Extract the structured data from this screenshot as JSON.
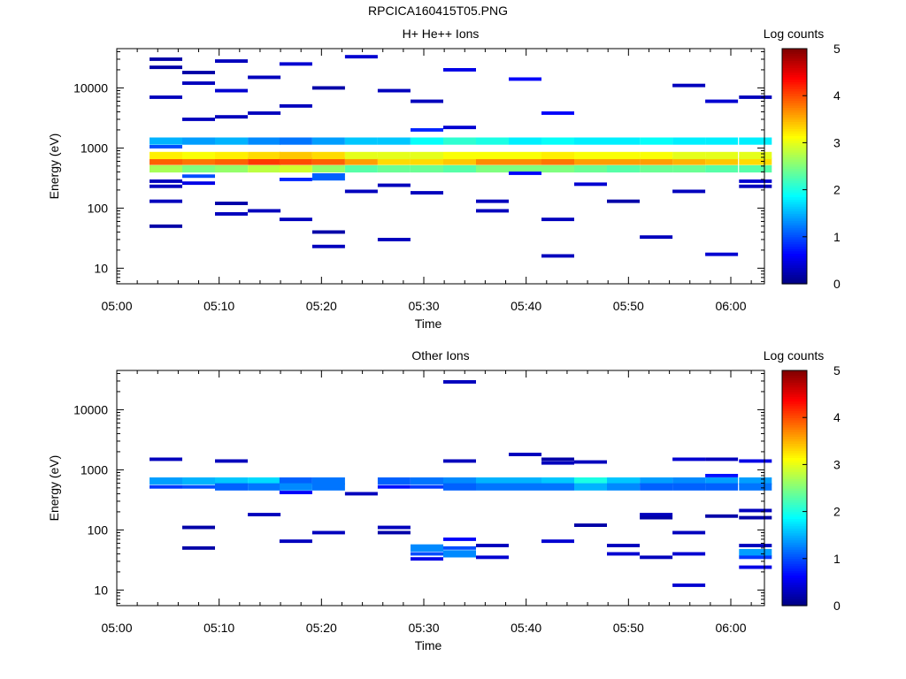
{
  "figure": {
    "filename": "RPCICA160415T05.PNG"
  },
  "chart_data": [
    {
      "type": "heatmap",
      "title": "H+ He++ Ions",
      "xlabel": "Time",
      "ylabel": "Energy (eV)",
      "x_ticks": [
        "05:00",
        "05:10",
        "05:20",
        "05:30",
        "05:40",
        "05:50",
        "06:00"
      ],
      "x_range_minutes": [
        0,
        63
      ],
      "y_ticks": [
        10,
        100,
        1000,
        10000
      ],
      "y_tick_labels": [
        "10",
        "100",
        "1000",
        "10000"
      ],
      "y_scale": "log",
      "y_range": [
        5.5,
        45000
      ],
      "colorbar": {
        "label": "Log counts",
        "min": 0,
        "max": 5,
        "ticks": [
          "0",
          "1",
          "2",
          "3",
          "4",
          "5"
        ],
        "colormap": "jet"
      },
      "time_bins_minutes": [
        3.2,
        6.4,
        9.6,
        12.8,
        15.9,
        19.1,
        22.3,
        25.5,
        28.7,
        31.9,
        35.1,
        38.3,
        41.5,
        44.7,
        47.9,
        51.1,
        54.3,
        57.5,
        60.8
      ],
      "cells": [
        {
          "t": 0,
          "e": 600,
          "v": 3.9
        },
        {
          "t": 0,
          "e": 450,
          "v": 2.7
        },
        {
          "t": 0,
          "e": 750,
          "v": 3.2
        },
        {
          "t": 0,
          "e": 1300,
          "v": 1.5
        },
        {
          "t": 0,
          "e": 1050,
          "v": 1.0
        },
        {
          "t": 0,
          "e": 50,
          "v": 0.2
        },
        {
          "t": 0,
          "e": 130,
          "v": 0.3
        },
        {
          "t": 0,
          "e": 230,
          "v": 0.3
        },
        {
          "t": 0,
          "e": 280,
          "v": 0.3
        },
        {
          "t": 0,
          "e": 7000,
          "v": 0.3
        },
        {
          "t": 0,
          "e": 22000,
          "v": 0.2
        },
        {
          "t": 0,
          "e": 30000,
          "v": 0.2
        },
        {
          "t": 1,
          "e": 600,
          "v": 3.8
        },
        {
          "t": 1,
          "e": 450,
          "v": 2.5
        },
        {
          "t": 1,
          "e": 750,
          "v": 3.1
        },
        {
          "t": 1,
          "e": 1300,
          "v": 1.4
        },
        {
          "t": 1,
          "e": 340,
          "v": 1.0
        },
        {
          "t": 1,
          "e": 260,
          "v": 0.5
        },
        {
          "t": 1,
          "e": 3000,
          "v": 0.3
        },
        {
          "t": 1,
          "e": 12000,
          "v": 0.3
        },
        {
          "t": 1,
          "e": 18000,
          "v": 0.2
        },
        {
          "t": 2,
          "e": 600,
          "v": 3.9
        },
        {
          "t": 2,
          "e": 450,
          "v": 2.6
        },
        {
          "t": 2,
          "e": 750,
          "v": 3.2
        },
        {
          "t": 2,
          "e": 1300,
          "v": 1.5
        },
        {
          "t": 2,
          "e": 80,
          "v": 0.3
        },
        {
          "t": 2,
          "e": 120,
          "v": 0.2
        },
        {
          "t": 2,
          "e": 9000,
          "v": 0.4
        },
        {
          "t": 2,
          "e": 3300,
          "v": 0.3
        },
        {
          "t": 2,
          "e": 28000,
          "v": 0.3
        },
        {
          "t": 3,
          "e": 600,
          "v": 4.1
        },
        {
          "t": 3,
          "e": 450,
          "v": 2.8
        },
        {
          "t": 3,
          "e": 750,
          "v": 3.3
        },
        {
          "t": 3,
          "e": 1300,
          "v": 1.3
        },
        {
          "t": 3,
          "e": 90,
          "v": 0.3
        },
        {
          "t": 3,
          "e": 3800,
          "v": 0.3
        },
        {
          "t": 3,
          "e": 15000,
          "v": 0.3
        },
        {
          "t": 4,
          "e": 600,
          "v": 4.0
        },
        {
          "t": 4,
          "e": 450,
          "v": 2.9
        },
        {
          "t": 4,
          "e": 750,
          "v": 3.4
        },
        {
          "t": 4,
          "e": 1300,
          "v": 1.2
        },
        {
          "t": 4,
          "e": 300,
          "v": 0.8
        },
        {
          "t": 4,
          "e": 65,
          "v": 0.3
        },
        {
          "t": 4,
          "e": 25000,
          "v": 0.4
        },
        {
          "t": 4,
          "e": 5000,
          "v": 0.3
        },
        {
          "t": 5,
          "e": 600,
          "v": 3.9
        },
        {
          "t": 5,
          "e": 450,
          "v": 2.6
        },
        {
          "t": 5,
          "e": 750,
          "v": 3.3
        },
        {
          "t": 5,
          "e": 1300,
          "v": 1.4
        },
        {
          "t": 5,
          "e": 330,
          "v": 1.1
        },
        {
          "t": 5,
          "e": 40,
          "v": 0.2
        },
        {
          "t": 5,
          "e": 23,
          "v": 0.3
        },
        {
          "t": 5,
          "e": 10000,
          "v": 0.2
        },
        {
          "t": 6,
          "e": 600,
          "v": 3.6
        },
        {
          "t": 6,
          "e": 450,
          "v": 2.3
        },
        {
          "t": 6,
          "e": 750,
          "v": 3.0
        },
        {
          "t": 6,
          "e": 1300,
          "v": 1.6
        },
        {
          "t": 6,
          "e": 190,
          "v": 0.3
        },
        {
          "t": 6,
          "e": 33000,
          "v": 0.4
        },
        {
          "t": 7,
          "e": 600,
          "v": 3.3
        },
        {
          "t": 7,
          "e": 450,
          "v": 2.4
        },
        {
          "t": 7,
          "e": 750,
          "v": 3.0
        },
        {
          "t": 7,
          "e": 1300,
          "v": 1.6
        },
        {
          "t": 7,
          "e": 30,
          "v": 0.3
        },
        {
          "t": 7,
          "e": 240,
          "v": 0.3
        },
        {
          "t": 7,
          "e": 9000,
          "v": 0.3
        },
        {
          "t": 8,
          "e": 600,
          "v": 3.3
        },
        {
          "t": 8,
          "e": 450,
          "v": 2.4
        },
        {
          "t": 8,
          "e": 750,
          "v": 3.0
        },
        {
          "t": 8,
          "e": 1300,
          "v": 1.9
        },
        {
          "t": 8,
          "e": 2000,
          "v": 0.8
        },
        {
          "t": 8,
          "e": 180,
          "v": 0.3
        },
        {
          "t": 8,
          "e": 6000,
          "v": 0.3
        },
        {
          "t": 9,
          "e": 600,
          "v": 3.4
        },
        {
          "t": 9,
          "e": 450,
          "v": 2.3
        },
        {
          "t": 9,
          "e": 750,
          "v": 3.1
        },
        {
          "t": 9,
          "e": 1300,
          "v": 2.1
        },
        {
          "t": 9,
          "e": 20000,
          "v": 0.5
        },
        {
          "t": 9,
          "e": 2200,
          "v": 0.4
        },
        {
          "t": 10,
          "e": 600,
          "v": 3.7
        },
        {
          "t": 10,
          "e": 450,
          "v": 2.5
        },
        {
          "t": 10,
          "e": 750,
          "v": 3.1
        },
        {
          "t": 10,
          "e": 1300,
          "v": 2.0
        },
        {
          "t": 10,
          "e": 90,
          "v": 0.3
        },
        {
          "t": 10,
          "e": 130,
          "v": 0.3
        },
        {
          "t": 11,
          "e": 600,
          "v": 3.7
        },
        {
          "t": 11,
          "e": 450,
          "v": 2.5
        },
        {
          "t": 11,
          "e": 750,
          "v": 3.1
        },
        {
          "t": 11,
          "e": 1300,
          "v": 1.8
        },
        {
          "t": 11,
          "e": 14000,
          "v": 0.6
        },
        {
          "t": 11,
          "e": 380,
          "v": 0.6
        },
        {
          "t": 12,
          "e": 600,
          "v": 3.8
        },
        {
          "t": 12,
          "e": 450,
          "v": 2.5
        },
        {
          "t": 12,
          "e": 750,
          "v": 3.2
        },
        {
          "t": 12,
          "e": 1300,
          "v": 1.9
        },
        {
          "t": 12,
          "e": 3800,
          "v": 0.6
        },
        {
          "t": 12,
          "e": 16,
          "v": 0.3
        },
        {
          "t": 12,
          "e": 65,
          "v": 0.3
        },
        {
          "t": 13,
          "e": 600,
          "v": 3.6
        },
        {
          "t": 13,
          "e": 450,
          "v": 2.4
        },
        {
          "t": 13,
          "e": 750,
          "v": 3.1
        },
        {
          "t": 13,
          "e": 1300,
          "v": 1.8
        },
        {
          "t": 13,
          "e": 250,
          "v": 0.4
        },
        {
          "t": 14,
          "e": 600,
          "v": 3.6
        },
        {
          "t": 14,
          "e": 450,
          "v": 2.3
        },
        {
          "t": 14,
          "e": 750,
          "v": 3.1
        },
        {
          "t": 14,
          "e": 1300,
          "v": 1.8
        },
        {
          "t": 14,
          "e": 130,
          "v": 0.2
        },
        {
          "t": 15,
          "e": 600,
          "v": 3.6
        },
        {
          "t": 15,
          "e": 450,
          "v": 2.4
        },
        {
          "t": 15,
          "e": 750,
          "v": 3.1
        },
        {
          "t": 15,
          "e": 1300,
          "v": 1.9
        },
        {
          "t": 15,
          "e": 33,
          "v": 0.3
        },
        {
          "t": 16,
          "e": 600,
          "v": 3.5
        },
        {
          "t": 16,
          "e": 450,
          "v": 2.4
        },
        {
          "t": 16,
          "e": 750,
          "v": 3.0
        },
        {
          "t": 16,
          "e": 1300,
          "v": 1.8
        },
        {
          "t": 16,
          "e": 190,
          "v": 0.3
        },
        {
          "t": 16,
          "e": 11000,
          "v": 0.3
        },
        {
          "t": 17,
          "e": 600,
          "v": 3.4
        },
        {
          "t": 17,
          "e": 450,
          "v": 2.3
        },
        {
          "t": 17,
          "e": 750,
          "v": 3.0
        },
        {
          "t": 17,
          "e": 1300,
          "v": 1.8
        },
        {
          "t": 17,
          "e": 17,
          "v": 0.4
        },
        {
          "t": 17,
          "e": 6000,
          "v": 0.4
        },
        {
          "t": 18,
          "e": 600,
          "v": 3.3
        },
        {
          "t": 18,
          "e": 450,
          "v": 2.3
        },
        {
          "t": 18,
          "e": 750,
          "v": 3.0
        },
        {
          "t": 18,
          "e": 1300,
          "v": 1.8
        },
        {
          "t": 18,
          "e": 280,
          "v": 0.4
        },
        {
          "t": 18,
          "e": 230,
          "v": 0.3
        },
        {
          "t": 18,
          "e": 7000,
          "v": 0.3
        }
      ]
    },
    {
      "type": "heatmap",
      "title": "Other Ions",
      "xlabel": "Time",
      "ylabel": "Energy (eV)",
      "x_ticks": [
        "05:00",
        "05:10",
        "05:20",
        "05:30",
        "05:40",
        "05:50",
        "06:00"
      ],
      "x_range_minutes": [
        0,
        63
      ],
      "y_ticks": [
        10,
        100,
        1000,
        10000
      ],
      "y_tick_labels": [
        "10",
        "100",
        "1000",
        "10000"
      ],
      "y_scale": "log",
      "y_range": [
        5.5,
        45000
      ],
      "colorbar": {
        "label": "Log counts",
        "min": 0,
        "max": 5,
        "ticks": [
          "0",
          "1",
          "2",
          "3",
          "4",
          "5"
        ],
        "colormap": "jet"
      },
      "time_bins_minutes": [
        3.2,
        6.4,
        9.6,
        12.8,
        15.9,
        19.1,
        22.3,
        25.5,
        28.7,
        31.9,
        35.1,
        38.3,
        41.5,
        44.7,
        47.9,
        51.1,
        54.3,
        57.5,
        60.8
      ],
      "cells": [
        {
          "t": 0,
          "e": 650,
          "v": 1.4
        },
        {
          "t": 0,
          "e": 520,
          "v": 0.9
        },
        {
          "t": 0,
          "e": 1500,
          "v": 0.3
        },
        {
          "t": 1,
          "e": 650,
          "v": 1.5
        },
        {
          "t": 1,
          "e": 520,
          "v": 1.0
        },
        {
          "t": 1,
          "e": 110,
          "v": 0.2
        },
        {
          "t": 1,
          "e": 50,
          "v": 0.2
        },
        {
          "t": 2,
          "e": 650,
          "v": 1.6
        },
        {
          "t": 2,
          "e": 520,
          "v": 1.1
        },
        {
          "t": 2,
          "e": 1400,
          "v": 0.3
        },
        {
          "t": 3,
          "e": 650,
          "v": 1.7
        },
        {
          "t": 3,
          "e": 520,
          "v": 1.2
        },
        {
          "t": 3,
          "e": 180,
          "v": 0.3
        },
        {
          "t": 4,
          "e": 650,
          "v": 1.1
        },
        {
          "t": 4,
          "e": 520,
          "v": 1.3
        },
        {
          "t": 4,
          "e": 420,
          "v": 0.6
        },
        {
          "t": 4,
          "e": 65,
          "v": 0.3
        },
        {
          "t": 5,
          "e": 650,
          "v": 1.2
        },
        {
          "t": 5,
          "e": 520,
          "v": 1.2
        },
        {
          "t": 5,
          "e": 90,
          "v": 0.3
        },
        {
          "t": 6,
          "e": 400,
          "v": 0.3
        },
        {
          "t": 7,
          "e": 650,
          "v": 1.1
        },
        {
          "t": 7,
          "e": 520,
          "v": 0.7
        },
        {
          "t": 7,
          "e": 110,
          "v": 0.3
        },
        {
          "t": 7,
          "e": 90,
          "v": 0.2
        },
        {
          "t": 8,
          "e": 650,
          "v": 1.2
        },
        {
          "t": 8,
          "e": 520,
          "v": 0.9
        },
        {
          "t": 8,
          "e": 50,
          "v": 1.3
        },
        {
          "t": 8,
          "e": 40,
          "v": 1.0
        },
        {
          "t": 8,
          "e": 33,
          "v": 0.5
        },
        {
          "t": 9,
          "e": 650,
          "v": 1.3
        },
        {
          "t": 9,
          "e": 520,
          "v": 1.1
        },
        {
          "t": 9,
          "e": 70,
          "v": 0.6
        },
        {
          "t": 9,
          "e": 50,
          "v": 1.0
        },
        {
          "t": 9,
          "e": 40,
          "v": 1.3
        },
        {
          "t": 9,
          "e": 1400,
          "v": 0.3
        },
        {
          "t": 9,
          "e": 29000,
          "v": 0.3
        },
        {
          "t": 10,
          "e": 650,
          "v": 1.5
        },
        {
          "t": 10,
          "e": 520,
          "v": 1.2
        },
        {
          "t": 10,
          "e": 55,
          "v": 0.3
        },
        {
          "t": 10,
          "e": 35,
          "v": 0.4
        },
        {
          "t": 11,
          "e": 650,
          "v": 1.5
        },
        {
          "t": 11,
          "e": 520,
          "v": 1.2
        },
        {
          "t": 11,
          "e": 1800,
          "v": 0.3
        },
        {
          "t": 12,
          "e": 650,
          "v": 1.6
        },
        {
          "t": 12,
          "e": 520,
          "v": 1.2
        },
        {
          "t": 12,
          "e": 1300,
          "v": 0.3
        },
        {
          "t": 12,
          "e": 1500,
          "v": 0.2
        },
        {
          "t": 12,
          "e": 65,
          "v": 0.4
        },
        {
          "t": 13,
          "e": 650,
          "v": 2.0
        },
        {
          "t": 13,
          "e": 520,
          "v": 1.5
        },
        {
          "t": 13,
          "e": 120,
          "v": 0.2
        },
        {
          "t": 13,
          "e": 1350,
          "v": 0.3
        },
        {
          "t": 14,
          "e": 650,
          "v": 1.6
        },
        {
          "t": 14,
          "e": 520,
          "v": 1.3
        },
        {
          "t": 14,
          "e": 55,
          "v": 0.3
        },
        {
          "t": 14,
          "e": 40,
          "v": 0.4
        },
        {
          "t": 15,
          "e": 650,
          "v": 1.4
        },
        {
          "t": 15,
          "e": 520,
          "v": 1.1
        },
        {
          "t": 15,
          "e": 180,
          "v": 0.3
        },
        {
          "t": 15,
          "e": 160,
          "v": 0.2
        },
        {
          "t": 15,
          "e": 35,
          "v": 0.3
        },
        {
          "t": 16,
          "e": 650,
          "v": 1.3
        },
        {
          "t": 16,
          "e": 520,
          "v": 1.1
        },
        {
          "t": 16,
          "e": 1500,
          "v": 0.4
        },
        {
          "t": 16,
          "e": 90,
          "v": 0.3
        },
        {
          "t": 16,
          "e": 40,
          "v": 0.4
        },
        {
          "t": 16,
          "e": 12,
          "v": 0.4
        },
        {
          "t": 17,
          "e": 650,
          "v": 1.4
        },
        {
          "t": 17,
          "e": 800,
          "v": 0.7
        },
        {
          "t": 17,
          "e": 520,
          "v": 1.1
        },
        {
          "t": 17,
          "e": 1500,
          "v": 0.3
        },
        {
          "t": 17,
          "e": 170,
          "v": 0.2
        },
        {
          "t": 18,
          "e": 650,
          "v": 1.4
        },
        {
          "t": 18,
          "e": 520,
          "v": 1.2
        },
        {
          "t": 18,
          "e": 1400,
          "v": 0.5
        },
        {
          "t": 18,
          "e": 210,
          "v": 0.3
        },
        {
          "t": 18,
          "e": 160,
          "v": 0.2
        },
        {
          "t": 18,
          "e": 55,
          "v": 0.3
        },
        {
          "t": 18,
          "e": 42,
          "v": 1.4
        },
        {
          "t": 18,
          "e": 35,
          "v": 0.9
        },
        {
          "t": 18,
          "e": 24,
          "v": 0.5
        }
      ]
    }
  ]
}
